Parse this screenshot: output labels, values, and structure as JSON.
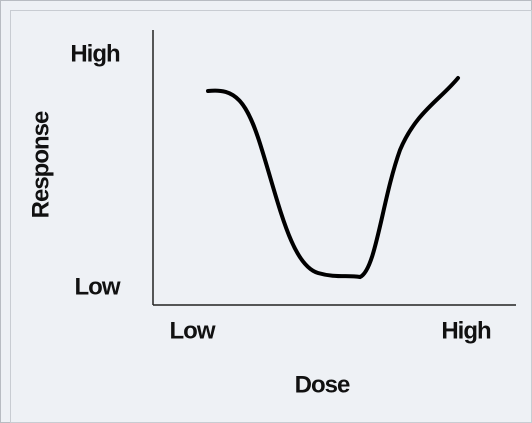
{
  "y_axis": {
    "label": "Response",
    "ticks": [
      "High",
      "Low"
    ]
  },
  "x_axis": {
    "label": "Dose",
    "ticks": [
      "Low",
      "High"
    ]
  }
}
